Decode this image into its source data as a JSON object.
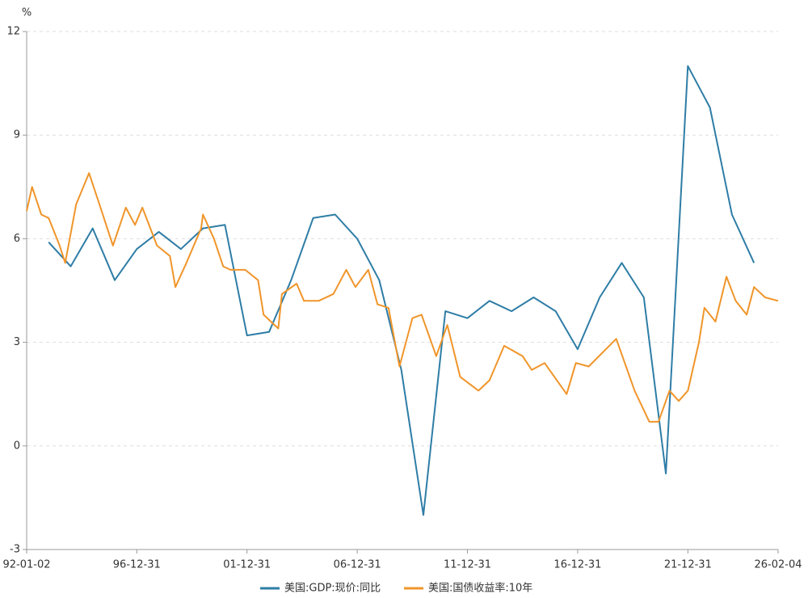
{
  "chart_data": {
    "type": "line",
    "y_label": "%",
    "xlim": [
      "92-01-02",
      "26-02-04"
    ],
    "xticks": [
      "92-01-02",
      "96-12-31",
      "01-12-31",
      "06-12-31",
      "11-12-31",
      "16-12-31",
      "21-12-31",
      "26-02-04"
    ],
    "ylim": [
      -3,
      12
    ],
    "yticks": [
      -3,
      0,
      3,
      6,
      9,
      12
    ],
    "grid": true,
    "legend": "bottom",
    "series": [
      {
        "name": "美国:GDP:现价:同比",
        "color": "#2e7da6",
        "x": [
          "92-12-31",
          "93-12-31",
          "94-12-31",
          "95-12-31",
          "96-12-31",
          "97-12-31",
          "98-12-31",
          "99-12-31",
          "00-12-31",
          "01-12-31",
          "02-12-31",
          "03-12-31",
          "04-12-31",
          "05-12-31",
          "06-12-31",
          "07-12-31",
          "08-12-31",
          "09-12-31",
          "10-12-31",
          "11-12-31",
          "12-12-31",
          "13-12-31",
          "14-12-31",
          "15-12-31",
          "16-12-31",
          "17-12-31",
          "18-12-31",
          "19-12-31",
          "20-12-31",
          "21-12-31",
          "22-12-31",
          "23-12-31",
          "24-12-31"
        ],
        "values": [
          5.9,
          5.2,
          6.3,
          4.8,
          5.7,
          6.2,
          5.7,
          6.3,
          6.4,
          3.2,
          3.3,
          4.8,
          6.6,
          6.7,
          6.0,
          4.8,
          2.2,
          -2.0,
          3.9,
          3.7,
          4.2,
          3.9,
          4.3,
          3.9,
          2.8,
          4.3,
          5.3,
          4.3,
          -0.8,
          11.0,
          9.8,
          6.7,
          5.3
        ]
      },
      {
        "name": "美国:国债收益率:10年",
        "color": "#f0952a",
        "x": [
          "92-01-02",
          "92-04-01",
          "92-09-01",
          "93-01-01",
          "93-07-01",
          "93-10-01",
          "94-04-01",
          "94-11-01",
          "95-04-01",
          "95-12-01",
          "96-07-01",
          "96-12-01",
          "97-04-01",
          "97-12-01",
          "98-07-01",
          "98-10-01",
          "99-04-01",
          "99-12-01",
          "00-01-01",
          "00-07-01",
          "00-12-01",
          "01-04-01",
          "01-12-01",
          "02-07-01",
          "02-10-01",
          "03-06-01",
          "03-08-01",
          "04-04-01",
          "04-08-01",
          "05-04-01",
          "05-12-01",
          "06-07-01",
          "06-12-01",
          "07-07-01",
          "07-12-01",
          "08-06-01",
          "08-12-01",
          "09-07-01",
          "09-12-01",
          "10-08-01",
          "11-02-01",
          "11-09-01",
          "12-07-01",
          "13-01-01",
          "13-09-01",
          "14-07-01",
          "14-12-01",
          "15-07-01",
          "16-07-01",
          "16-12-01",
          "17-07-01",
          "18-10-01",
          "19-08-01",
          "20-04-01",
          "20-09-01",
          "21-03-01",
          "21-08-01",
          "22-01-01",
          "22-07-01",
          "22-10-01",
          "23-04-01",
          "23-10-01",
          "24-03-01",
          "24-09-01",
          "25-01-01",
          "25-07-01",
          "26-02-04"
        ],
        "values": [
          6.8,
          7.5,
          6.7,
          6.6,
          5.8,
          5.3,
          7.0,
          7.9,
          7.1,
          5.8,
          6.9,
          6.4,
          6.9,
          5.8,
          5.5,
          4.6,
          5.3,
          6.3,
          6.7,
          6.0,
          5.2,
          5.1,
          5.1,
          4.8,
          3.8,
          3.4,
          4.4,
          4.7,
          4.2,
          4.2,
          4.4,
          5.1,
          4.6,
          5.1,
          4.1,
          4.0,
          2.3,
          3.7,
          3.8,
          2.6,
          3.5,
          2.0,
          1.6,
          1.9,
          2.9,
          2.6,
          2.2,
          2.4,
          1.5,
          2.4,
          2.3,
          3.1,
          1.6,
          0.7,
          0.7,
          1.6,
          1.3,
          1.6,
          3.0,
          4.0,
          3.6,
          4.9,
          4.2,
          3.8,
          4.6,
          4.3,
          4.2
        ]
      }
    ]
  }
}
